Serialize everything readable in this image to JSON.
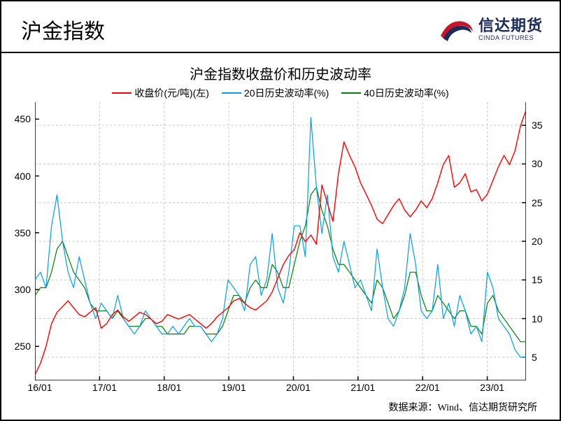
{
  "header": {
    "page_title": "沪金指数",
    "logo_cn": "信达期货",
    "logo_en": "CINDA FUTURES"
  },
  "chart": {
    "title": "沪金指数收盘价和历史波动率",
    "type": "line",
    "background_color": "#ffffff",
    "grid_color": "#c7c7c7",
    "axis_color": "#000000",
    "title_fontsize": 20,
    "label_fontsize": 14,
    "legend": [
      {
        "label": "收盘价(元/吨)(左)",
        "color": "#ff0000"
      },
      {
        "label": "20日历史波动率(%)",
        "color": "#00a0e8"
      },
      {
        "label": "40日历史波动率(%)",
        "color": "#007f00"
      }
    ],
    "x_axis": {
      "ticks": [
        "16/01",
        "17/01",
        "18/01",
        "19/01",
        "20/01",
        "21/01",
        "22/01",
        "23/01"
      ],
      "n_points": 90
    },
    "y_left": {
      "min": 220,
      "max": 465,
      "ticks": [
        250,
        300,
        350,
        400,
        450
      ]
    },
    "y_right": {
      "min": 2,
      "max": 38,
      "ticks": [
        5,
        10,
        15,
        20,
        25,
        30,
        35
      ]
    },
    "series": {
      "close_price": {
        "axis": "left",
        "color": "#ff0000",
        "line_width": 1.4,
        "values": [
          225,
          235,
          250,
          270,
          280,
          285,
          290,
          284,
          278,
          276,
          280,
          284,
          266,
          270,
          278,
          282,
          276,
          272,
          276,
          280,
          278,
          274,
          270,
          272,
          278,
          276,
          274,
          276,
          278,
          274,
          270,
          266,
          270,
          276,
          280,
          284,
          290,
          292,
          288,
          284,
          282,
          286,
          290,
          298,
          310,
          322,
          330,
          335,
          350,
          342,
          348,
          340,
          392,
          376,
          360,
          402,
          430,
          418,
          408,
          394,
          384,
          374,
          362,
          358,
          366,
          374,
          380,
          370,
          364,
          370,
          378,
          372,
          380,
          394,
          410,
          418,
          390,
          394,
          402,
          386,
          388,
          378,
          384,
          396,
          408,
          418,
          410,
          422,
          444,
          458
        ]
      },
      "vol20": {
        "axis": "right",
        "color": "#00a0e8",
        "line_width": 1.2,
        "values": [
          15,
          16,
          14,
          22,
          26,
          20,
          16,
          14,
          18,
          15,
          12,
          10,
          12,
          11,
          10,
          13,
          10,
          9,
          8,
          9,
          11,
          10,
          9,
          8,
          8,
          9,
          8,
          9,
          10,
          9,
          9,
          8,
          7,
          8,
          10,
          15,
          14,
          13,
          11,
          17,
          18,
          13,
          15,
          21,
          14,
          12,
          16,
          22,
          22,
          18,
          36,
          27,
          21,
          26,
          18,
          16,
          20,
          17,
          14,
          15,
          13,
          11,
          19,
          14,
          10,
          9,
          11,
          14,
          21,
          17,
          11,
          10,
          11,
          17,
          10,
          12,
          9,
          13,
          11,
          8,
          9,
          7,
          16,
          14,
          10,
          9,
          8,
          6,
          5,
          5
        ]
      },
      "vol40": {
        "axis": "right",
        "color": "#007f00",
        "line_width": 1.2,
        "values": [
          13,
          14,
          14,
          16,
          19,
          20,
          18,
          16,
          15,
          14,
          12,
          11,
          11,
          11,
          10,
          11,
          10,
          9,
          9,
          9,
          10,
          10,
          9,
          9,
          8,
          8,
          8,
          8,
          9,
          9,
          9,
          8,
          8,
          8,
          9,
          11,
          13,
          13,
          12,
          14,
          15,
          14,
          14,
          17,
          16,
          14,
          14,
          17,
          20,
          22,
          26,
          27,
          24,
          22,
          19,
          17,
          17,
          16,
          15,
          14,
          13,
          12,
          15,
          14,
          12,
          10,
          11,
          13,
          16,
          16,
          13,
          11,
          11,
          13,
          12,
          11,
          10,
          11,
          11,
          9,
          9,
          8,
          12,
          13,
          11,
          10,
          9,
          8,
          7,
          7
        ]
      }
    },
    "source_label": "数据来源：Wind、信达期货研究所"
  }
}
